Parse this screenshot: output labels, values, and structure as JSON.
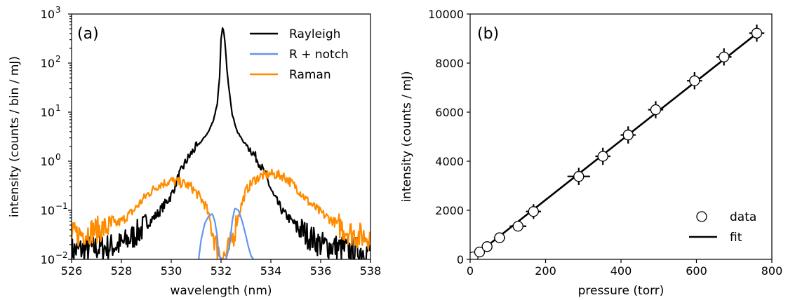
{
  "chart_data": [
    {
      "type": "line",
      "panel_label": "(a)",
      "xlabel": "wavelength (nm)",
      "ylabel": "intensity (counts / bin / mJ)",
      "xlim": [
        526,
        538
      ],
      "ylim": [
        0.01,
        1000
      ],
      "yscale": "log",
      "xticks": [
        526,
        528,
        530,
        532,
        534,
        536,
        538
      ],
      "xtick_labels": [
        "526",
        "528",
        "530",
        "532",
        "534",
        "536",
        "538"
      ],
      "yticks": [
        0.01,
        0.1,
        1,
        10,
        100,
        1000
      ],
      "ytick_labels": [
        {
          "base": "10",
          "exp": "−2"
        },
        {
          "base": "10",
          "exp": "−1"
        },
        {
          "base": "10",
          "exp": "0"
        },
        {
          "base": "10",
          "exp": "1"
        },
        {
          "base": "10",
          "exp": "2"
        },
        {
          "base": "10",
          "exp": "3"
        }
      ],
      "legend_position": "top-right",
      "series": [
        {
          "name": "Rayleigh",
          "color": "#000000",
          "x": [
            526.0,
            527.0,
            527.5,
            528.0,
            528.5,
            529.0,
            529.5,
            530.0,
            530.3,
            530.6,
            530.9,
            531.2,
            531.5,
            531.7,
            531.85,
            531.95,
            532.0,
            532.07,
            532.15,
            532.25,
            532.45,
            532.65,
            532.9,
            533.2,
            533.5,
            533.8,
            534.1,
            534.5,
            535.0,
            535.5,
            536.0,
            536.5,
            537.0,
            538.0
          ],
          "y": [
            0.015,
            0.017,
            0.018,
            0.02,
            0.03,
            0.05,
            0.09,
            0.2,
            0.5,
            1.0,
            1.7,
            2.5,
            4.0,
            7.0,
            15.0,
            60.0,
            300.0,
            550.0,
            300.0,
            60.0,
            9.0,
            4.0,
            2.5,
            1.7,
            1.0,
            0.5,
            0.2,
            0.09,
            0.05,
            0.03,
            0.02,
            0.018,
            0.016,
            0.015
          ]
        },
        {
          "name": "R + notch",
          "color": "#6495ed",
          "x": [
            531.1,
            531.2,
            531.35,
            531.5,
            531.65,
            531.75,
            531.85,
            531.9,
            532.05,
            532.2,
            532.35,
            532.45,
            532.55,
            532.7,
            532.85,
            533.0,
            533.1,
            533.2,
            533.3
          ],
          "y": [
            0.01,
            0.025,
            0.055,
            0.075,
            0.085,
            0.06,
            0.03,
            0.012,
            0.01,
            0.01,
            0.02,
            0.06,
            0.11,
            0.1,
            0.06,
            0.03,
            0.018,
            0.012,
            0.01
          ]
        },
        {
          "name": "Raman",
          "color": "#ff8c00",
          "x": [
            526.0,
            526.5,
            527.0,
            527.5,
            528.0,
            528.5,
            529.0,
            529.5,
            530.0,
            530.5,
            530.8,
            531.1,
            531.4,
            531.6,
            531.8,
            532.0,
            532.2,
            532.4,
            532.6,
            532.8,
            533.0,
            533.3,
            533.6,
            534.0,
            534.5,
            535.0,
            535.5,
            536.0,
            536.5,
            537.0,
            537.5,
            538.0
          ],
          "y": [
            0.03,
            0.035,
            0.04,
            0.045,
            0.06,
            0.1,
            0.2,
            0.33,
            0.4,
            0.35,
            0.3,
            0.2,
            0.12,
            0.05,
            0.02,
            0.012,
            0.012,
            0.02,
            0.05,
            0.12,
            0.25,
            0.4,
            0.5,
            0.55,
            0.5,
            0.3,
            0.15,
            0.09,
            0.06,
            0.04,
            0.03,
            0.03
          ]
        }
      ]
    },
    {
      "type": "scatter",
      "panel_label": "(b)",
      "xlabel": "pressure (torr)",
      "ylabel": "intensity (counts / mJ)",
      "xlim": [
        0,
        800
      ],
      "ylim": [
        0,
        10000
      ],
      "xticks": [
        0,
        200,
        400,
        600,
        800
      ],
      "xtick_labels": [
        "0",
        "200",
        "400",
        "600",
        "800"
      ],
      "yticks": [
        0,
        2000,
        4000,
        6000,
        8000,
        10000
      ],
      "ytick_labels": [
        "0",
        "2000",
        "4000",
        "6000",
        "8000",
        "10000"
      ],
      "legend_position": "bottom-right",
      "series": [
        {
          "name": "data",
          "marker": "open-circle",
          "points": [
            {
              "x": 8,
              "y": 100,
              "xerr": 5,
              "yerr": 60
            },
            {
              "x": 25,
              "y": 300,
              "xerr": 10,
              "yerr": 80
            },
            {
              "x": 45,
              "y": 520,
              "xerr": 12,
              "yerr": 100
            },
            {
              "x": 78,
              "y": 880,
              "xerr": 15,
              "yerr": 150
            },
            {
              "x": 127,
              "y": 1350,
              "xerr": 22,
              "yerr": 170
            },
            {
              "x": 168,
              "y": 1950,
              "xerr": 20,
              "yerr": 300
            },
            {
              "x": 288,
              "y": 3380,
              "xerr": 30,
              "yerr": 350
            },
            {
              "x": 352,
              "y": 4200,
              "xerr": 20,
              "yerr": 350
            },
            {
              "x": 419,
              "y": 5070,
              "xerr": 20,
              "yerr": 350
            },
            {
              "x": 492,
              "y": 6100,
              "xerr": 20,
              "yerr": 350
            },
            {
              "x": 595,
              "y": 7280,
              "xerr": 20,
              "yerr": 350
            },
            {
              "x": 673,
              "y": 8250,
              "xerr": 20,
              "yerr": 350
            },
            {
              "x": 760,
              "y": 9220,
              "xerr": 20,
              "yerr": 350
            }
          ]
        },
        {
          "name": "fit",
          "type": "line",
          "color": "#000000",
          "x": [
            0,
            762
          ],
          "y": [
            0,
            9230
          ]
        }
      ]
    }
  ]
}
